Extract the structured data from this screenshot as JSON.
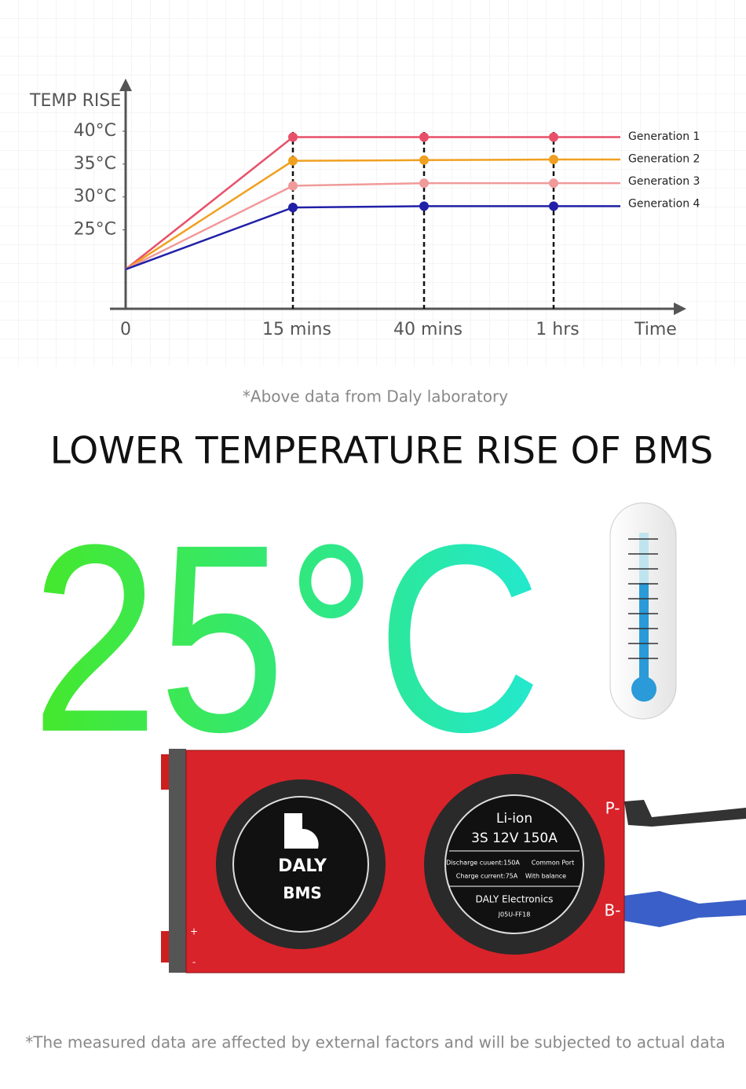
{
  "chart_data": {
    "type": "line",
    "y_label": "TEMP RISE",
    "x_label": "Time",
    "categories": [
      "0",
      "15 mins",
      "40 mins",
      "1 hrs"
    ],
    "ylim": [
      13,
      48
    ],
    "yticks": [
      {
        "value": 40,
        "label": "40°C"
      },
      {
        "value": 35,
        "label": "35°C"
      },
      {
        "value": 30,
        "label": "30°C"
      },
      {
        "value": 25,
        "label": "25°C"
      }
    ],
    "grid": true,
    "series": [
      {
        "name": "Generation 1",
        "color": "#e8506a",
        "values": [
          19,
          39.1,
          39.1,
          39.1
        ]
      },
      {
        "name": "Generation 2",
        "color": "#f0a020",
        "values": [
          19,
          35.5,
          35.6,
          35.7
        ]
      },
      {
        "name": "Generation 3",
        "color": "#f09a9a",
        "values": [
          19,
          31.7,
          32.1,
          32.1
        ]
      },
      {
        "name": "Generation 4",
        "color": "#2020a8",
        "values": [
          19,
          28.4,
          28.6,
          28.6
        ]
      }
    ]
  },
  "source_note": "*Above data from Daly laboratory",
  "heading": "LOWER TEMPERATURE RISE OF BMS",
  "headline_value": "25°C",
  "product": {
    "brand": "DALY",
    "badge": "BMS",
    "chem": "Li-ion",
    "spec": "3S 12V 150A",
    "discharge": "Discharge cuuent:150A",
    "port": "Common Port",
    "charge": "Charge current:75A",
    "balance": "With balance",
    "maker": "DALY Electronics",
    "model": "J05U-FF18",
    "p_port": "P-",
    "b_port": "B-",
    "plus": "+",
    "minus": "-"
  },
  "footnote": "*The measured data are affected by external factors and will be subjected to actual data"
}
